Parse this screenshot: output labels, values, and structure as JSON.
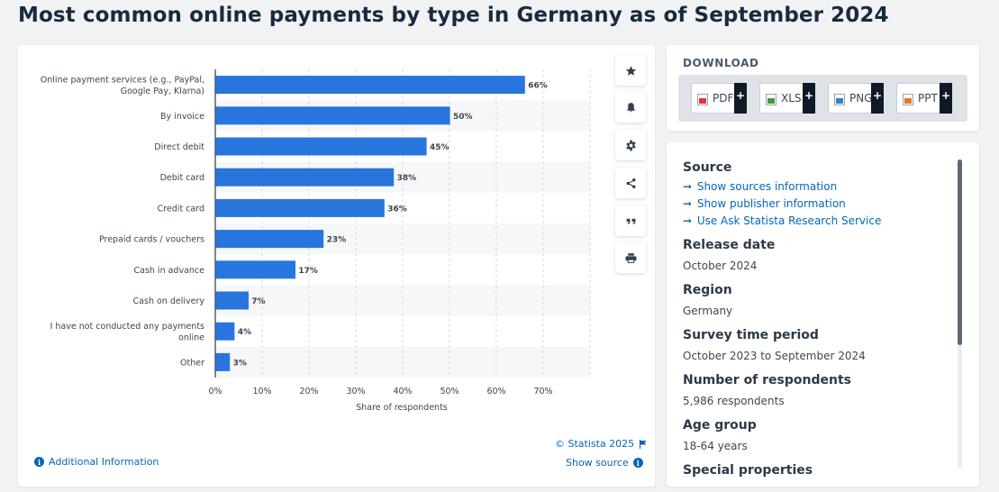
{
  "page": {
    "title": "Most common online payments by type in Germany as of September 2024"
  },
  "chart_data": {
    "type": "bar",
    "orientation": "horizontal",
    "categories": [
      "Online payment services (e.g., PayPal, Google Pay, Klarna)",
      "By invoice",
      "Direct debit",
      "Debit card",
      "Credit card",
      "Prepaid cards / vouchers",
      "Cash in advance",
      "Cash on delivery",
      "I have not conducted any payments online",
      "Other"
    ],
    "category_lines": [
      [
        "Online payment services (e.g., PayPal,",
        "Google Pay, Klarna)"
      ],
      [
        "By invoice"
      ],
      [
        "Direct debit"
      ],
      [
        "Debit card"
      ],
      [
        "Credit card"
      ],
      [
        "Prepaid cards / vouchers"
      ],
      [
        "Cash in advance"
      ],
      [
        "Cash on delivery"
      ],
      [
        "I have not conducted any payments",
        "online"
      ],
      [
        "Other"
      ]
    ],
    "values": [
      66,
      50,
      45,
      38,
      36,
      23,
      17,
      7,
      4,
      3
    ],
    "value_labels": [
      "66%",
      "50%",
      "45%",
      "38%",
      "36%",
      "23%",
      "17%",
      "7%",
      "4%",
      "3%"
    ],
    "xlabel": "Share of respondents",
    "ylabel": "",
    "xlim": [
      0,
      80
    ],
    "x_ticks": [
      "0%",
      "10%",
      "20%",
      "30%",
      "40%",
      "50%",
      "60%",
      "70%"
    ],
    "grid": "vertical dashed",
    "bar_color": "#2876dd"
  },
  "toolbar": {
    "icons": [
      "star-icon",
      "bell-icon",
      "gear-icon",
      "share-icon",
      "quote-icon",
      "print-icon"
    ]
  },
  "chart_footer": {
    "copyright": "© Statista 2025",
    "additional_info": "Additional Information",
    "show_source": "Show source"
  },
  "download": {
    "title": "DOWNLOAD",
    "buttons": [
      {
        "label": "PDF",
        "plus": "+",
        "icon_color": "#d9363e"
      },
      {
        "label": "XLS",
        "plus": "+",
        "icon_color": "#3e9b3e"
      },
      {
        "label": "PNG",
        "plus": "+",
        "icon_color": "#3b7dc8"
      },
      {
        "label": "PPT",
        "plus": "+",
        "icon_color": "#e07b26"
      }
    ]
  },
  "info": {
    "source": {
      "heading": "Source",
      "links": [
        "Show sources information",
        "Show publisher information",
        "Use Ask Statista Research Service"
      ]
    },
    "release_date": {
      "heading": "Release date",
      "value": "October 2024"
    },
    "region": {
      "heading": "Region",
      "value": "Germany"
    },
    "survey_period": {
      "heading": "Survey time period",
      "value": "October 2023 to September 2024"
    },
    "respondents": {
      "heading": "Number of respondents",
      "value": "5,986 respondents"
    },
    "age_group": {
      "heading": "Age group",
      "value": "18-64 years"
    },
    "special_properties": {
      "heading": "Special properties"
    }
  }
}
